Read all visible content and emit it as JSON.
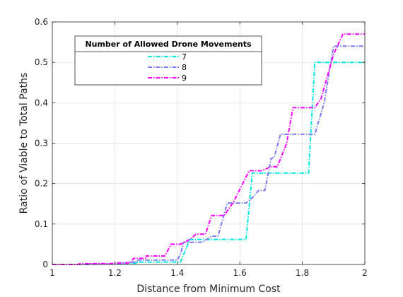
{
  "chart_data": {
    "type": "line",
    "title": "",
    "xlabel": "Distance from Minimum Cost",
    "ylabel": "Ratio of Viable to Total Paths",
    "xlim": [
      1,
      2
    ],
    "ylim": [
      0,
      0.6
    ],
    "xticks": [
      "1",
      "1.2",
      "1.4",
      "1.6",
      "1.8",
      "2"
    ],
    "yticks": [
      "0",
      "0.1",
      "0.2",
      "0.3",
      "0.4",
      "0.5",
      "0.6"
    ],
    "grid": true,
    "legend": {
      "title": "Number of Allowed Drone Movements",
      "placement": "top-left"
    },
    "series": [
      {
        "name": "7",
        "color": "#00e5e5",
        "points": [
          [
            1.0,
            0
          ],
          [
            1.1,
            0
          ],
          [
            1.1,
            0.001
          ],
          [
            1.22,
            0.001
          ],
          [
            1.22,
            0.003
          ],
          [
            1.27,
            0.003
          ],
          [
            1.27,
            0.006
          ],
          [
            1.41,
            0.006
          ],
          [
            1.44,
            0.062
          ],
          [
            1.62,
            0.062
          ],
          [
            1.64,
            0.226
          ],
          [
            1.82,
            0.226
          ],
          [
            1.84,
            0.5
          ],
          [
            2.0,
            0.5
          ]
        ]
      },
      {
        "name": "8",
        "color": "#7b7bf2",
        "points": [
          [
            1.0,
            0
          ],
          [
            1.12,
            0
          ],
          [
            1.12,
            0.002
          ],
          [
            1.24,
            0.002
          ],
          [
            1.24,
            0.006
          ],
          [
            1.27,
            0.006
          ],
          [
            1.27,
            0.011
          ],
          [
            1.4,
            0.011
          ],
          [
            1.41,
            0.025
          ],
          [
            1.42,
            0.055
          ],
          [
            1.48,
            0.055
          ],
          [
            1.51,
            0.07
          ],
          [
            1.53,
            0.07
          ],
          [
            1.56,
            0.152
          ],
          [
            1.62,
            0.152
          ],
          [
            1.64,
            0.165
          ],
          [
            1.66,
            0.183
          ],
          [
            1.68,
            0.183
          ],
          [
            1.7,
            0.262
          ],
          [
            1.71,
            0.265
          ],
          [
            1.73,
            0.322
          ],
          [
            1.84,
            0.322
          ],
          [
            1.87,
            0.4
          ],
          [
            1.9,
            0.54
          ],
          [
            2.0,
            0.54
          ]
        ]
      },
      {
        "name": "9",
        "color": "#ff00ff",
        "points": [
          [
            1.0,
            0
          ],
          [
            1.08,
            0
          ],
          [
            1.09,
            0.002
          ],
          [
            1.19,
            0.002
          ],
          [
            1.2,
            0.004
          ],
          [
            1.25,
            0.004
          ],
          [
            1.26,
            0.015
          ],
          [
            1.3,
            0.015
          ],
          [
            1.3,
            0.021
          ],
          [
            1.36,
            0.021
          ],
          [
            1.38,
            0.05
          ],
          [
            1.41,
            0.05
          ],
          [
            1.44,
            0.062
          ],
          [
            1.46,
            0.075
          ],
          [
            1.49,
            0.075
          ],
          [
            1.51,
            0.121
          ],
          [
            1.55,
            0.121
          ],
          [
            1.58,
            0.155
          ],
          [
            1.63,
            0.232
          ],
          [
            1.67,
            0.232
          ],
          [
            1.7,
            0.242
          ],
          [
            1.72,
            0.242
          ],
          [
            1.75,
            0.3
          ],
          [
            1.77,
            0.388
          ],
          [
            1.84,
            0.388
          ],
          [
            1.86,
            0.41
          ],
          [
            1.9,
            0.52
          ],
          [
            1.93,
            0.57
          ],
          [
            2.0,
            0.57
          ]
        ]
      }
    ]
  }
}
